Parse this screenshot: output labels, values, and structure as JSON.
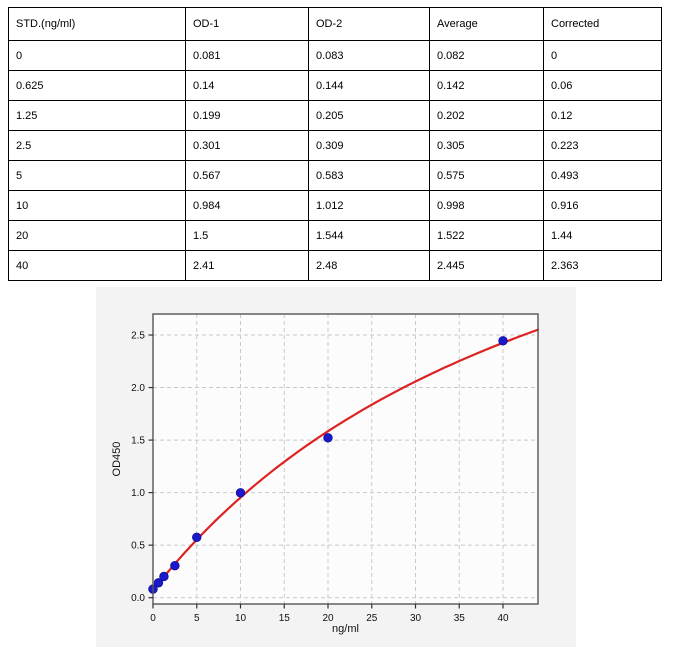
{
  "table": {
    "headers": [
      "STD.(ng/ml)",
      "OD-1",
      "OD-2",
      "Average",
      "Corrected"
    ],
    "rows": [
      [
        "0",
        "0.081",
        "0.083",
        "0.082",
        "0"
      ],
      [
        "0.625",
        "0.14",
        "0.144",
        "0.142",
        "0.06"
      ],
      [
        "1.25",
        "0.199",
        "0.205",
        "0.202",
        "0.12"
      ],
      [
        "2.5",
        "0.301",
        "0.309",
        "0.305",
        "0.223"
      ],
      [
        "5",
        "0.567",
        "0.583",
        "0.575",
        "0.493"
      ],
      [
        "10",
        "0.984",
        "1.012",
        "0.998",
        "0.916"
      ],
      [
        "20",
        "1.5",
        "1.544",
        "1.522",
        "1.44"
      ],
      [
        "40",
        "2.41",
        "2.48",
        "2.445",
        "2.363"
      ]
    ]
  },
  "chart_data": {
    "type": "scatter",
    "title": "",
    "xlabel": "ng/ml",
    "ylabel": "OD450",
    "xlim": [
      0,
      44
    ],
    "ylim": [
      -0.06,
      2.7
    ],
    "x_ticks": [
      0,
      5,
      10,
      15,
      20,
      25,
      30,
      35,
      40
    ],
    "y_ticks": [
      0.0,
      0.5,
      1.0,
      1.5,
      2.0,
      2.5
    ],
    "y_tick_labels": [
      "0.0",
      "0.5",
      "1.0",
      "1.5",
      "2.0",
      "2.5"
    ],
    "grid": true,
    "legend": "none",
    "points": {
      "x": [
        0,
        0.625,
        1.25,
        2.5,
        5,
        10,
        20,
        40
      ],
      "y": [
        0.082,
        0.142,
        0.202,
        0.305,
        0.575,
        0.998,
        1.522,
        2.445
      ]
    },
    "fit_curve": {
      "model": "y = c + vmax*x/(km+x)",
      "c": 0.07,
      "vmax": 5.3,
      "km": 50,
      "x_range": [
        0,
        44
      ]
    },
    "colors": {
      "point": "#1a1acc",
      "point_edge": "#101095",
      "curve": "#dd2222",
      "grid": "#c9c9c9",
      "figure_bg": "#f3f3f3",
      "plot_bg": "#fcfcfc",
      "spine": "#555555",
      "tick": "#333333",
      "tick_label": "#111111",
      "table_border": "#000000"
    }
  }
}
